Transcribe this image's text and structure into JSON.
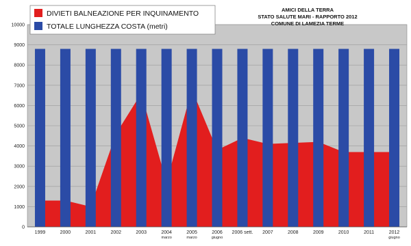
{
  "chart_data": {
    "type": "bar",
    "categories": [
      {
        "label": "1999",
        "sub": ""
      },
      {
        "label": "2000",
        "sub": ""
      },
      {
        "label": "2001",
        "sub": ""
      },
      {
        "label": "2002",
        "sub": ""
      },
      {
        "label": "2003",
        "sub": ""
      },
      {
        "label": "2004",
        "sub": "marzo"
      },
      {
        "label": "2005",
        "sub": "marzo"
      },
      {
        "label": "2006",
        "sub": "giugno"
      },
      {
        "label": "2006 sett.",
        "sub": ""
      },
      {
        "label": "2007",
        "sub": ""
      },
      {
        "label": "2008",
        "sub": ""
      },
      {
        "label": "2009",
        "sub": ""
      },
      {
        "label": "2010",
        "sub": ""
      },
      {
        "label": "2011",
        "sub": ""
      },
      {
        "label": "2012",
        "sub": "giugno"
      }
    ],
    "series": [
      {
        "name": "DIVIETI BALNEAZIONE PER INQUINAMENTO",
        "type": "area",
        "color": "#e21e1e",
        "values": [
          1300,
          1300,
          1000,
          4600,
          6600,
          2200,
          6800,
          3800,
          4400,
          4100,
          4150,
          4200,
          3700,
          3700,
          3700
        ]
      },
      {
        "name": "TOTALE LUNGHEZZA  COSTA (metri)",
        "type": "bar",
        "color": "#2b4ba6",
        "values": [
          8800,
          8800,
          8800,
          8800,
          8800,
          8800,
          8800,
          8800,
          8800,
          8800,
          8800,
          8800,
          8800,
          8800,
          8800
        ]
      }
    ],
    "yticks": [
      "0",
      "1000",
      "2000",
      "3000",
      "4000",
      "5000",
      "6000",
      "7000",
      "8000",
      "9000",
      "10000"
    ],
    "ylim": [
      0,
      10000
    ],
    "title_lines": [
      "AMICI DELLA TERRA",
      "STATO SALUTE MARI - RAPPORTO 2012",
      "COMUNE DI LAMEZIA TERME"
    ],
    "title": "",
    "xlabel": "",
    "ylabel": "",
    "legend_position": "top-left",
    "grid": true,
    "plot_bg": "#c8c8c8"
  }
}
